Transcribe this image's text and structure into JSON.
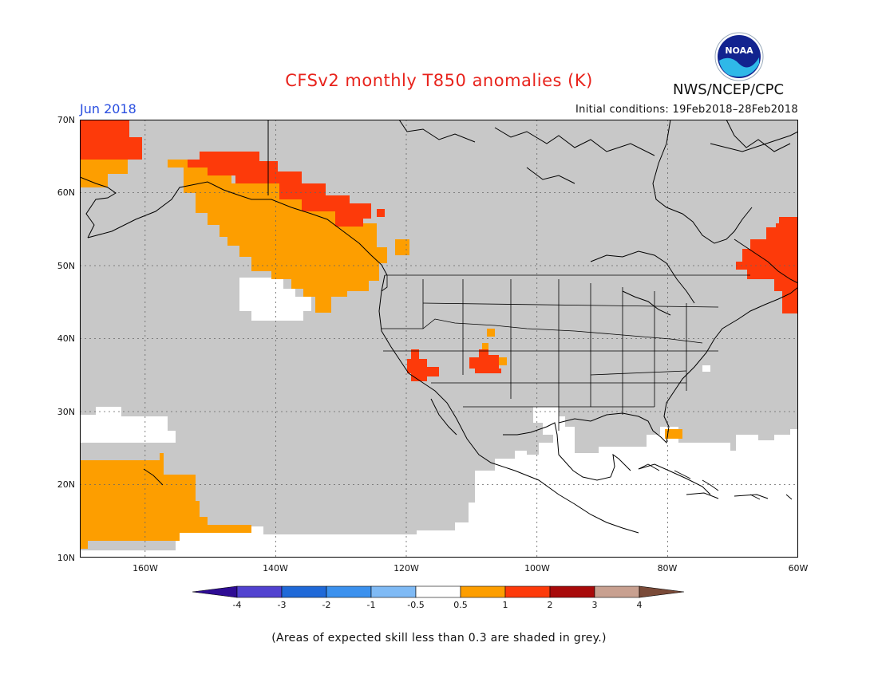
{
  "title": "CFSv2 monthly T850 anomalies (K)",
  "agency": "NWS/NCEP/CPC",
  "logo_text": "NOAA",
  "month": "Jun 2018",
  "initial_conditions": "Initial conditions: 19Feb2018–28Feb2018",
  "note": "(Areas of expected skill less than 0.3 are shaded in grey.)",
  "lat_labels": [
    "70N",
    "60N",
    "50N",
    "40N",
    "30N",
    "20N",
    "10N"
  ],
  "lon_labels": [
    "160W",
    "140W",
    "120W",
    "100W",
    "80W",
    "60W"
  ],
  "colorbar": {
    "ticks": [
      "-4",
      "-3",
      "-2",
      "-1",
      "-0.5",
      "0.5",
      "1",
      "2",
      "3",
      "4"
    ],
    "colors": [
      "#2e0c94",
      "#5142d0",
      "#1f69d8",
      "#3b91ee",
      "#7fbaf5",
      "#ffffff",
      "#fd9e00",
      "#fd3a0a",
      "#a80a0a",
      "#c8a090",
      "#7a4a38"
    ]
  },
  "colors": {
    "skill_grey": "#c8c8c8",
    "warm_05_1": "#fd9e00",
    "warm_1_2": "#fd3a0a",
    "title_red": "#e8231c",
    "month_blue": "#2a4fe0"
  },
  "map_extent": {
    "lon": [
      -170,
      -60
    ],
    "lat": [
      10,
      70
    ]
  }
}
